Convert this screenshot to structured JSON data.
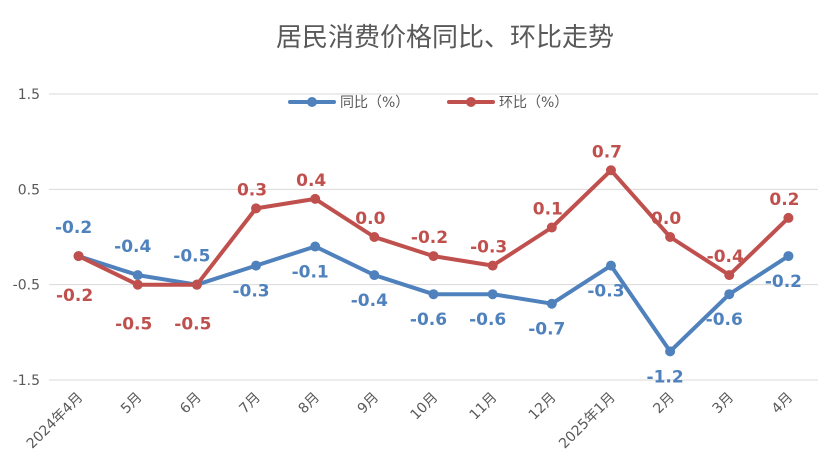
{
  "chart_data": {
    "type": "line",
    "title": "居民消费价格同比、环比走势",
    "categories": [
      "2024年4月",
      "5月",
      "6月",
      "7月",
      "8月",
      "9月",
      "10月",
      "11月",
      "12月",
      "2025年1月",
      "2月",
      "3月",
      "4月"
    ],
    "series": [
      {
        "name": "同比（%）",
        "color": "#4F81BD",
        "values": [
          -0.2,
          -0.4,
          -0.5,
          -0.3,
          -0.1,
          -0.4,
          -0.6,
          -0.6,
          -0.7,
          -0.3,
          -1.2,
          -0.6,
          -0.2
        ],
        "labels": [
          "-0.2",
          "-0.4",
          "-0.5",
          "-0.3",
          "-0.1",
          "-0.4",
          "-0.6",
          "-0.6",
          "-0.7",
          "-0.3",
          "-1.2",
          "-0.6",
          "-0.2"
        ]
      },
      {
        "name": "环比（%）",
        "color": "#C0504D",
        "values": [
          -0.2,
          -0.5,
          -0.5,
          0.3,
          0.4,
          0.0,
          -0.2,
          -0.3,
          0.1,
          0.7,
          0.0,
          -0.4,
          0.2
        ],
        "labels": [
          "-0.2",
          "-0.5",
          "-0.5",
          "0.3",
          "0.4",
          "0.0",
          "-0.2",
          "-0.3",
          "0.1",
          "0.7",
          "0.0",
          "-0.4",
          "0.2"
        ]
      }
    ],
    "y_ticks": [
      1.5,
      0.5,
      -0.5,
      -1.5
    ],
    "y_tick_labels": [
      "1.5",
      "0.5",
      "-0.5",
      "-1.5"
    ],
    "ylim": [
      -1.5,
      1.5
    ],
    "grid": true,
    "legend_position": "top-center",
    "xlabel": "",
    "ylabel": ""
  }
}
